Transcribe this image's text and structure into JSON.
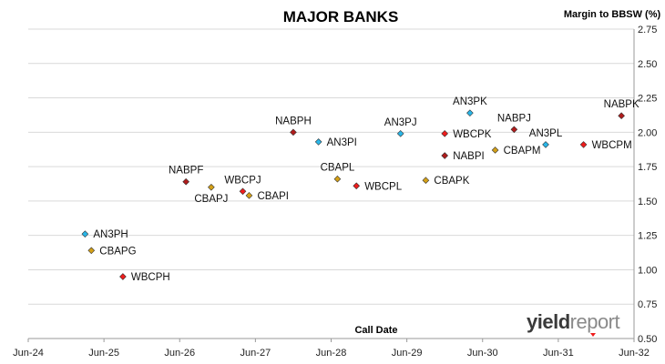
{
  "chart_data": {
    "type": "scatter",
    "title": "MAJOR BANKS",
    "xlabel": "Call Date",
    "ylabel": "Margin to BBSW (%)",
    "x_ticks": [
      "Jun-24",
      "Jun-25",
      "Jun-26",
      "Jun-27",
      "Jun-28",
      "Jun-29",
      "Jun-30",
      "Jun-31",
      "Jun-32"
    ],
    "y_ticks": [
      "0.50",
      "0.75",
      "1.00",
      "1.25",
      "1.50",
      "1.75",
      "2.00",
      "2.25",
      "2.50",
      "2.75"
    ],
    "xlim": [
      "2024-06",
      "2032-06"
    ],
    "ylim": [
      0.5,
      2.75
    ],
    "grid": "horizontal",
    "points": [
      {
        "label": "AN3PH",
        "x": "2025-03",
        "y": 1.26,
        "color": "#29b6e8",
        "label_pos": "right"
      },
      {
        "label": "CBAPG",
        "x": "2025-04",
        "y": 1.14,
        "color": "#d4a017",
        "label_pos": "right"
      },
      {
        "label": "WBCPH",
        "x": "2025-09",
        "y": 0.95,
        "color": "#ee1c1c",
        "label_pos": "right"
      },
      {
        "label": "NABPF",
        "x": "2026-07",
        "y": 1.64,
        "color": "#b01c1c",
        "label_pos": "above"
      },
      {
        "label": "CBAPJ",
        "x": "2026-11",
        "y": 1.6,
        "color": "#d4a017",
        "label_pos": "below"
      },
      {
        "label": "WBCPJ",
        "x": "2027-04",
        "y": 1.57,
        "color": "#ee1c1c",
        "label_pos": "above"
      },
      {
        "label": "CBAPI",
        "x": "2027-05",
        "y": 1.54,
        "color": "#d4a017",
        "label_pos": "right"
      },
      {
        "label": "NABPH",
        "x": "2027-12",
        "y": 2.0,
        "color": "#b01c1c",
        "label_pos": "above"
      },
      {
        "label": "AN3PI",
        "x": "2028-04",
        "y": 1.93,
        "color": "#29b6e8",
        "label_pos": "right"
      },
      {
        "label": "CBAPL",
        "x": "2028-07",
        "y": 1.66,
        "color": "#d4a017",
        "label_pos": "above"
      },
      {
        "label": "WBCPL",
        "x": "2028-10",
        "y": 1.61,
        "color": "#ee1c1c",
        "label_pos": "right"
      },
      {
        "label": "AN3PJ",
        "x": "2029-05",
        "y": 1.99,
        "color": "#29b6e8",
        "label_pos": "above"
      },
      {
        "label": "CBAPK",
        "x": "2029-09",
        "y": 1.65,
        "color": "#d4a017",
        "label_pos": "right"
      },
      {
        "label": "WBCPK",
        "x": "2029-12",
        "y": 1.99,
        "color": "#ee1c1c",
        "label_pos": "right"
      },
      {
        "label": "NABPI",
        "x": "2029-12",
        "y": 1.83,
        "color": "#b01c1c",
        "label_pos": "right"
      },
      {
        "label": "AN3PK",
        "x": "2030-04",
        "y": 2.14,
        "color": "#29b6e8",
        "label_pos": "above"
      },
      {
        "label": "NABPJ",
        "x": "2030-11",
        "y": 2.02,
        "color": "#b01c1c",
        "label_pos": "above"
      },
      {
        "label": "CBAPM",
        "x": "2030-08",
        "y": 1.87,
        "color": "#d4a017",
        "label_pos": "right"
      },
      {
        "label": "AN3PL",
        "x": "2031-04",
        "y": 1.91,
        "color": "#29b6e8",
        "label_pos": "above"
      },
      {
        "label": "WBCPM",
        "x": "2031-10",
        "y": 1.91,
        "color": "#ee1c1c",
        "label_pos": "right"
      },
      {
        "label": "NABPK",
        "x": "2032-04",
        "y": 2.12,
        "color": "#b01c1c",
        "label_pos": "above"
      }
    ]
  },
  "logo": {
    "text_bold": "yield",
    "text_light": "report",
    "marker_color": "#ee1c1c"
  }
}
